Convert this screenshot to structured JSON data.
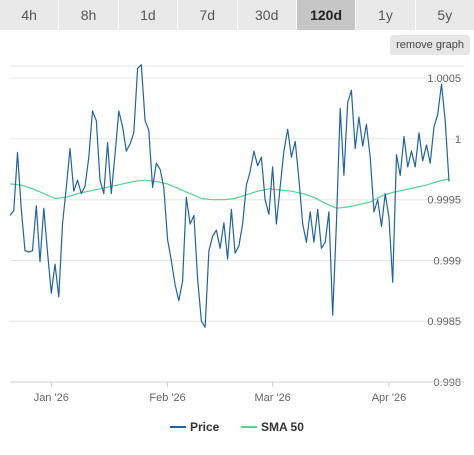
{
  "tabs": [
    {
      "label": "4h",
      "active": false
    },
    {
      "label": "8h",
      "active": false
    },
    {
      "label": "1d",
      "active": false
    },
    {
      "label": "7d",
      "active": false
    },
    {
      "label": "30d",
      "active": false
    },
    {
      "label": "120d",
      "active": true
    },
    {
      "label": "1y",
      "active": false
    },
    {
      "label": "5y",
      "active": false
    }
  ],
  "remove_graph_label": "remove graph",
  "colors": {
    "price": "#1f63a6",
    "sma": "#57d38c",
    "grid": "#e6e6e6",
    "axis": "#cccccc"
  },
  "chart_data": {
    "type": "line",
    "title": "",
    "xlabel": "",
    "ylabel": "",
    "ylim": [
      0.998,
      1.0006
    ],
    "y_ticks": [
      0.998,
      0.9985,
      0.999,
      0.9995,
      1,
      1.0005
    ],
    "y_tick_labels": [
      "0.998",
      "0.9985",
      "0.999",
      "0.9995",
      "1",
      "1.0005"
    ],
    "x_range": [
      "2025-12-21",
      "2026-04-21"
    ],
    "x_ticks": [
      "2026-01-01",
      "2026-02-01",
      "2026-03-01",
      "2026-04-01"
    ],
    "x_tick_labels": [
      "Jan '26",
      "Feb '26",
      "Mar '26",
      "Apr '26"
    ],
    "grid": true,
    "legend": "bottom-center",
    "series": [
      {
        "name": "Price",
        "points": [
          [
            "2025-12-21",
            0.99937
          ],
          [
            "2025-12-22",
            0.99941
          ],
          [
            "2025-12-23",
            0.99989
          ],
          [
            "2025-12-24",
            0.99942
          ],
          [
            "2025-12-25",
            0.99908
          ],
          [
            "2025-12-26",
            0.99907
          ],
          [
            "2025-12-27",
            0.99908
          ],
          [
            "2025-12-28",
            0.99945
          ],
          [
            "2025-12-29",
            0.99899
          ],
          [
            "2025-12-30",
            0.99943
          ],
          [
            "2025-12-31",
            0.99907
          ],
          [
            "2026-01-01",
            0.99873
          ],
          [
            "2026-01-02",
            0.99897
          ],
          [
            "2026-01-03",
            0.9987
          ],
          [
            "2026-01-04",
            0.9993
          ],
          [
            "2026-01-05",
            0.9996
          ],
          [
            "2026-01-06",
            0.99992
          ],
          [
            "2026-01-07",
            0.99957
          ],
          [
            "2026-01-08",
            0.99966
          ],
          [
            "2026-01-09",
            0.99955
          ],
          [
            "2026-01-10",
            0.99961
          ],
          [
            "2026-01-11",
            0.99985
          ],
          [
            "2026-01-12",
            1.00023
          ],
          [
            "2026-01-13",
            1.00015
          ],
          [
            "2026-01-14",
            0.99966
          ],
          [
            "2026-01-15",
            0.99955
          ],
          [
            "2026-01-16",
            0.99997
          ],
          [
            "2026-01-17",
            0.99955
          ],
          [
            "2026-01-18",
            0.99988
          ],
          [
            "2026-01-19",
            1.00023
          ],
          [
            "2026-01-20",
            1.0001
          ],
          [
            "2026-01-21",
            0.9999
          ],
          [
            "2026-01-22",
            0.99996
          ],
          [
            "2026-01-23",
            1.00005
          ],
          [
            "2026-01-24",
            1.00058
          ],
          [
            "2026-01-25",
            1.00061
          ],
          [
            "2026-01-26",
            1.00015
          ],
          [
            "2026-01-27",
            1.00007
          ],
          [
            "2026-01-28",
            0.9996
          ],
          [
            "2026-01-29",
            0.9998
          ],
          [
            "2026-01-30",
            0.99975
          ],
          [
            "2026-01-31",
            0.9996
          ],
          [
            "2026-02-01",
            0.99917
          ],
          [
            "2026-02-02",
            0.999
          ],
          [
            "2026-02-03",
            0.9988
          ],
          [
            "2026-02-04",
            0.99867
          ],
          [
            "2026-02-05",
            0.99883
          ],
          [
            "2026-02-06",
            0.99952
          ],
          [
            "2026-02-07",
            0.9993
          ],
          [
            "2026-02-08",
            0.99937
          ],
          [
            "2026-02-09",
            0.99885
          ],
          [
            "2026-02-10",
            0.9985
          ],
          [
            "2026-02-11",
            0.99845
          ],
          [
            "2026-02-12",
            0.99908
          ],
          [
            "2026-02-13",
            0.9992
          ],
          [
            "2026-02-14",
            0.99925
          ],
          [
            "2026-02-15",
            0.9991
          ],
          [
            "2026-02-16",
            0.99931
          ],
          [
            "2026-02-17",
            0.99901
          ],
          [
            "2026-02-18",
            0.99942
          ],
          [
            "2026-02-19",
            0.99906
          ],
          [
            "2026-02-20",
            0.99912
          ],
          [
            "2026-02-21",
            0.9993
          ],
          [
            "2026-02-22",
            0.99962
          ],
          [
            "2026-02-23",
            0.99973
          ],
          [
            "2026-02-24",
            0.9999
          ],
          [
            "2026-02-25",
            0.99978
          ],
          [
            "2026-02-26",
            0.99985
          ],
          [
            "2026-02-27",
            0.9995
          ],
          [
            "2026-02-28",
            0.99938
          ],
          [
            "2026-03-01",
            0.99977
          ],
          [
            "2026-03-02",
            0.9993
          ],
          [
            "2026-03-03",
            0.9996
          ],
          [
            "2026-03-04",
            0.9999
          ],
          [
            "2026-03-05",
            1.00008
          ],
          [
            "2026-03-06",
            0.99985
          ],
          [
            "2026-03-07",
            0.99998
          ],
          [
            "2026-03-08",
            0.99967
          ],
          [
            "2026-03-09",
            0.9993
          ],
          [
            "2026-03-10",
            0.99915
          ],
          [
            "2026-03-11",
            0.9994
          ],
          [
            "2026-03-12",
            0.99915
          ],
          [
            "2026-03-13",
            0.99942
          ],
          [
            "2026-03-14",
            0.9991
          ],
          [
            "2026-03-15",
            0.99915
          ],
          [
            "2026-03-16",
            0.9994
          ],
          [
            "2026-03-17",
            0.99855
          ],
          [
            "2026-03-18",
            0.9993
          ],
          [
            "2026-03-19",
            1.00025
          ],
          [
            "2026-03-20",
            0.9997
          ],
          [
            "2026-03-21",
            1.0003
          ],
          [
            "2026-03-22",
            1.0004
          ],
          [
            "2026-03-23",
            0.99992
          ],
          [
            "2026-03-24",
            1.00018
          ],
          [
            "2026-03-25",
            0.99994
          ],
          [
            "2026-03-26",
            1.00012
          ],
          [
            "2026-03-27",
            0.99985
          ],
          [
            "2026-03-28",
            0.9994
          ],
          [
            "2026-03-29",
            0.9995
          ],
          [
            "2026-03-30",
            0.99928
          ],
          [
            "2026-03-31",
            0.99955
          ],
          [
            "2026-04-01",
            0.99935
          ],
          [
            "2026-04-02",
            0.99882
          ],
          [
            "2026-04-03",
            0.99987
          ],
          [
            "2026-04-04",
            0.9997
          ],
          [
            "2026-04-05",
            1.00002
          ],
          [
            "2026-04-06",
            0.99977
          ],
          [
            "2026-04-07",
            0.9999
          ],
          [
            "2026-04-08",
            0.99977
          ],
          [
            "2026-04-09",
            1.00005
          ],
          [
            "2026-04-10",
            0.99982
          ],
          [
            "2026-04-11",
            0.99995
          ],
          [
            "2026-04-12",
            0.9998
          ],
          [
            "2026-04-13",
            1.0001
          ],
          [
            "2026-04-14",
            1.0002
          ],
          [
            "2026-04-15",
            1.00045
          ],
          [
            "2026-04-16",
            1.00015
          ],
          [
            "2026-04-17",
            0.99965
          ]
        ]
      },
      {
        "name": "SMA 50",
        "points": [
          [
            "2025-12-21",
            0.99963
          ],
          [
            "2025-12-24",
            0.99962
          ],
          [
            "2025-12-27",
            0.99959
          ],
          [
            "2025-12-30",
            0.99955
          ],
          [
            "2026-01-02",
            0.99951
          ],
          [
            "2026-01-05",
            0.99952
          ],
          [
            "2026-01-08",
            0.99955
          ],
          [
            "2026-01-11",
            0.99957
          ],
          [
            "2026-01-14",
            0.99959
          ],
          [
            "2026-01-17",
            0.99961
          ],
          [
            "2026-01-20",
            0.99963
          ],
          [
            "2026-01-23",
            0.99965
          ],
          [
            "2026-01-26",
            0.99966
          ],
          [
            "2026-01-29",
            0.99965
          ],
          [
            "2026-02-01",
            0.99963
          ],
          [
            "2026-02-04",
            0.99959
          ],
          [
            "2026-02-07",
            0.99955
          ],
          [
            "2026-02-10",
            0.99951
          ],
          [
            "2026-02-13",
            0.9995
          ],
          [
            "2026-02-16",
            0.9995
          ],
          [
            "2026-02-19",
            0.99951
          ],
          [
            "2026-02-22",
            0.99954
          ],
          [
            "2026-02-25",
            0.99957
          ],
          [
            "2026-02-28",
            0.99959
          ],
          [
            "2026-03-03",
            0.99958
          ],
          [
            "2026-03-06",
            0.99957
          ],
          [
            "2026-03-09",
            0.99955
          ],
          [
            "2026-03-12",
            0.99952
          ],
          [
            "2026-03-15",
            0.99947
          ],
          [
            "2026-03-18",
            0.99943
          ],
          [
            "2026-03-21",
            0.99944
          ],
          [
            "2026-03-24",
            0.99946
          ],
          [
            "2026-03-27",
            0.99948
          ],
          [
            "2026-03-30",
            0.99953
          ],
          [
            "2026-04-02",
            0.99956
          ],
          [
            "2026-04-05",
            0.99958
          ],
          [
            "2026-04-08",
            0.9996
          ],
          [
            "2026-04-11",
            0.99962
          ],
          [
            "2026-04-14",
            0.99965
          ],
          [
            "2026-04-17",
            0.99967
          ]
        ]
      }
    ]
  }
}
